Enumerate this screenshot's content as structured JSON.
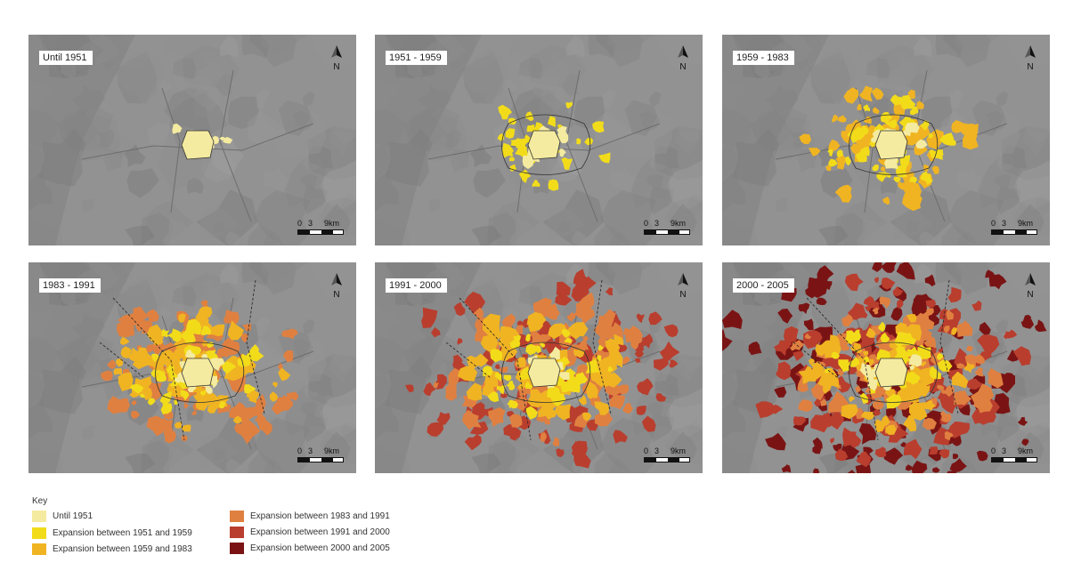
{
  "panels": [
    {
      "title": "Until 1951",
      "period_count": 1
    },
    {
      "title": "1951 - 1959",
      "period_count": 2
    },
    {
      "title": "1959 - 1983",
      "period_count": 3
    },
    {
      "title": "1983 - 1991",
      "period_count": 4
    },
    {
      "title": "1991 - 2000",
      "period_count": 5
    },
    {
      "title": "2000 - 2005",
      "period_count": 6
    }
  ],
  "north_label": "N",
  "scale_labels": {
    "zero": "0",
    "mid": "3",
    "end": "9km"
  },
  "legend": {
    "title": "Key",
    "items": [
      {
        "label": "Until 1951",
        "color": "#f4eba0"
      },
      {
        "label": "Expansion between 1951 and 1959",
        "color": "#f2dc1a"
      },
      {
        "label": "Expansion between 1959 and 1983",
        "color": "#f0b422"
      },
      {
        "label": "Expansion between 1983 and 1991",
        "color": "#e08040"
      },
      {
        "label": "Expansion between 1991 and 2000",
        "color": "#b93e2e"
      },
      {
        "label": "Expansion between 2000 and 2005",
        "color": "#7a1414"
      }
    ]
  }
}
